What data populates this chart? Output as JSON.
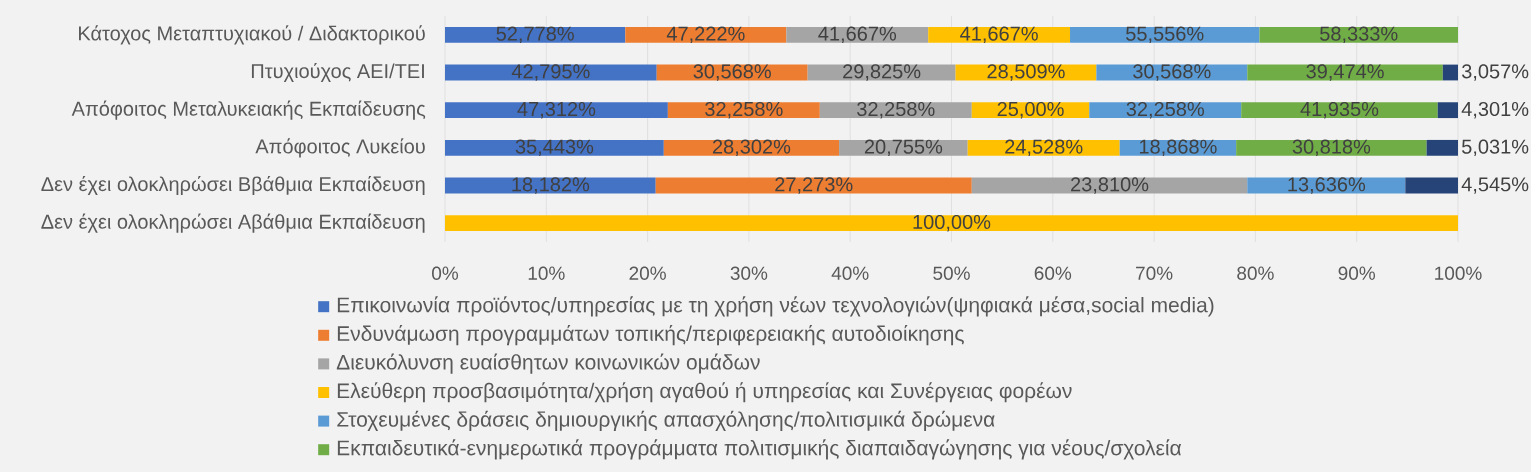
{
  "chart_data": {
    "type": "bar",
    "orientation": "horizontal",
    "stacked": true,
    "categories": [
      "Κάτοχος Μεταπτυχιακού / Διδακτορικού",
      "Πτυχιούχος ΑΕΙ/ΤΕΙ",
      "Απόφοιτος Μεταλυκειακής Εκπαίδευσης",
      "Απόφοιτος Λυκείου",
      "Δεν έχει ολοκληρώσει Ββάθμια Εκπαίδευση",
      "Δεν έχει ολοκληρώσει Αβάθμια Εκπαίδευση"
    ],
    "series": [
      {
        "name": "Επικοινωνία προϊόντος/υπηρεσίας με τη χρήση νέων τεχνολογιών(ψηφιακά μέσα,social media)",
        "color": "#4472c4",
        "values": [
          17.8,
          20.9,
          22.0,
          21.6,
          20.8,
          null
        ]
      },
      {
        "name": "Ενδυνάμωση προγραμμάτων τοπικής/περιφερειακής αυτοδιοίκησης",
        "color": "#ed7d31",
        "values": [
          15.9,
          14.9,
          15.0,
          17.3,
          31.2,
          null
        ]
      },
      {
        "name": "Διευκόλυνση ευαίσθητων κοινωνικών ομάδων",
        "color": "#a5a5a5",
        "values": [
          14.0,
          14.6,
          15.0,
          12.7,
          27.2,
          null
        ]
      },
      {
        "name": "Ελεύθερη προσβασιμότητα/χρήση αγαθού ή υπηρεσίας και Συνέργειας φορέων",
        "color": "#ffc000",
        "values": [
          14.0,
          13.9,
          11.6,
          15.0,
          null,
          100
        ]
      },
      {
        "name": "Στοχευμένες δράσεις δημιουργικής απασχόλησης/πολιτισμικά δρώμενα",
        "color": "#5b9bd5",
        "values": [
          18.7,
          14.9,
          15.0,
          11.5,
          15.6,
          null
        ]
      },
      {
        "name": "Εκπαιδευτικά-ενημερωτικά προγράμματα πολιτισμικής διαπαιδαγώγησης για νέους/σχολεία",
        "color": "#70ad47",
        "values": [
          19.6,
          19.3,
          19.4,
          18.8,
          null,
          null
        ]
      },
      {
        "color": "#264478",
        "values": [
          null,
          1.5,
          2.0,
          3.1,
          5.2,
          null
        ]
      }
    ],
    "xlim": [
      0,
      100
    ],
    "xticks": [
      {
        "value": 0,
        "label": "0%"
      },
      {
        "value": 10,
        "label": "10%"
      },
      {
        "value": 20,
        "label": "20%"
      },
      {
        "value": 30,
        "label": "30%"
      },
      {
        "value": 40,
        "label": "40%"
      },
      {
        "value": 50,
        "label": "50%"
      },
      {
        "value": 60,
        "label": "60%"
      },
      {
        "value": 70,
        "label": "70%"
      },
      {
        "value": 80,
        "label": "80%"
      },
      {
        "value": 90,
        "label": "90%"
      },
      {
        "value": 100,
        "label": "100%"
      }
    ],
    "annotations": [
      "52,778%",
      "47,222%",
      "41,667%",
      "41,667%",
      "55,556%",
      "58,333%",
      "42,795%",
      "30,568%",
      "29,825%",
      "28,509%",
      "30,568%",
      "39,474%",
      "3,057%",
      "47,312%",
      "32,258%",
      "32,258%",
      "25,00%",
      "32,258%",
      "41,935%",
      "4,301%",
      "35,443%",
      "28,302%",
      "20,755%",
      "24,528%",
      "18,868%",
      "30,818%",
      "5,031%",
      "18,182%",
      "27,273%",
      "23,810%",
      "13,636%",
      "4,545%",
      "100,00%"
    ],
    "grid": "x",
    "legend": "bottom"
  }
}
